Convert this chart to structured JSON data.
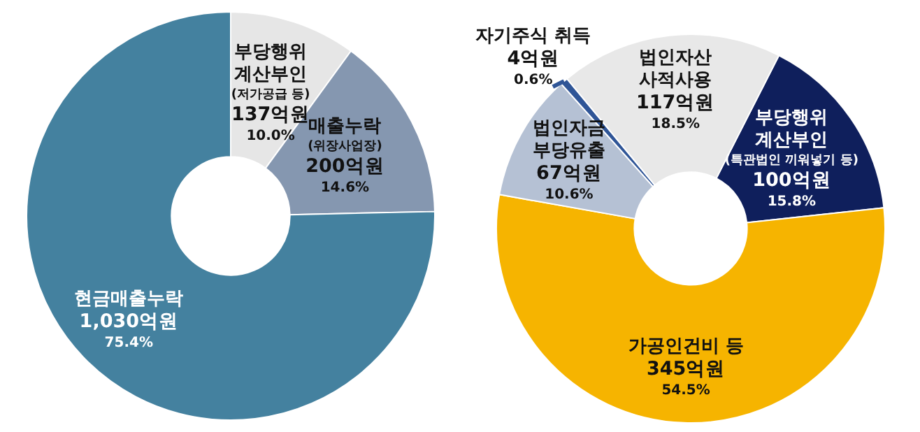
{
  "chart_data": [
    {
      "type": "donut",
      "categories": [
        "부당행위\n계산부인\n(저가공급 등)",
        "매출누락\n(위장사업장)",
        "현금매출누락"
      ],
      "values": [
        137,
        200,
        1030
      ],
      "colors": [
        "#e6e6e6",
        "#8597b0",
        "#44819f"
      ],
      "value_labels": [
        "137억원\n10.0%",
        "200억원\n14.6%",
        "1,030억원\n75.4%"
      ],
      "legend": false
    },
    {
      "type": "donut",
      "categories": [
        "부당행위\n계산부인\n(특관법인 끼워넣기 등)",
        "가공인건비 등",
        "법인자금\n부당유출",
        "자기주식 취득",
        "법인자산\n사적사용"
      ],
      "values": [
        100,
        345,
        67,
        4,
        117
      ],
      "colors": [
        "#0f1f5c",
        "#f6b400",
        "#b5c1d4",
        "#2f5597",
        "#e8e8e8"
      ],
      "value_labels": [
        "100억원\n15.8%",
        "345억원\n54.5%",
        "67억원\n10.6%",
        "4억원\n0.6%",
        "117억원\n18.5%"
      ],
      "legend": false
    }
  ]
}
